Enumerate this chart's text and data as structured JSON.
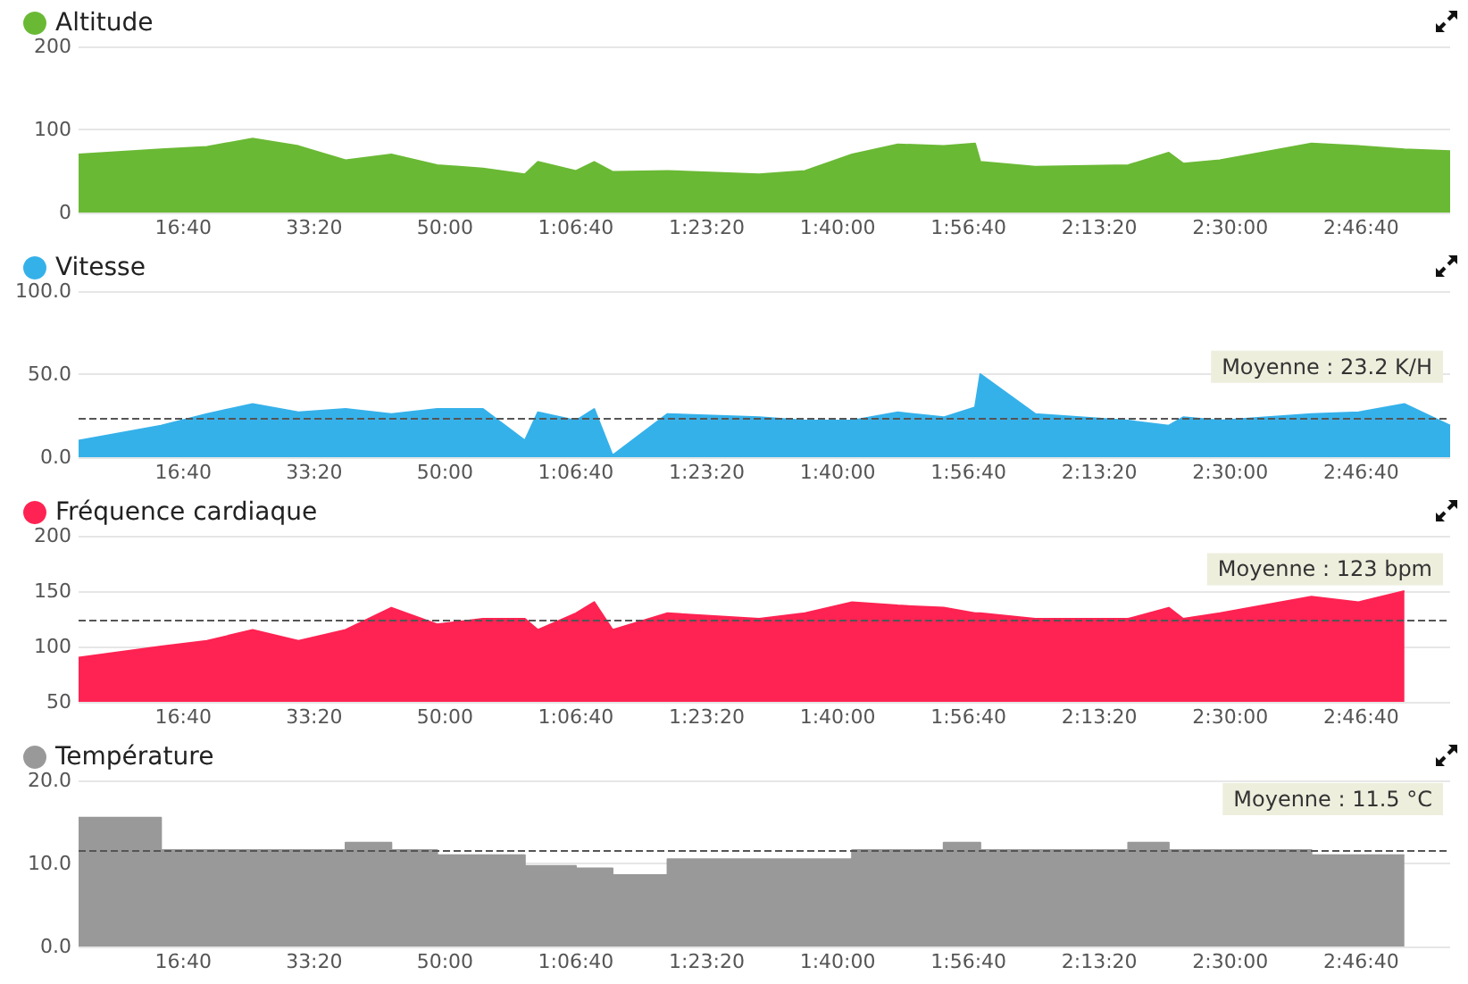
{
  "chart_data": [
    {
      "type": "area",
      "x": [
        200,
        830,
        1180,
        1530,
        1880,
        2240,
        2590,
        2940,
        3290,
        3610,
        3710,
        4000,
        4140,
        4280,
        4700,
        5400,
        5750,
        6110,
        6460,
        6810,
        7050,
        7090,
        7510,
        8220,
        8530,
        8640,
        8920,
        9620,
        9980,
        10330,
        10680
      ],
      "series": [
        {
          "name": "Altitude",
          "color": "#6ab935",
          "values": [
            70,
            76,
            79,
            89,
            80,
            63,
            70,
            57,
            53,
            46,
            61,
            50,
            61,
            49,
            50,
            46,
            50,
            70,
            82,
            80,
            83,
            61,
            55,
            57,
            72,
            59,
            63,
            83,
            80,
            76,
            74
          ]
        }
      ],
      "xlim": [
        200,
        10680
      ],
      "xticks": [
        {
          "value": 1000,
          "label": "16:40"
        },
        {
          "value": 2000,
          "label": "33:20"
        },
        {
          "value": 3000,
          "label": "50:00"
        },
        {
          "value": 4000,
          "label": "1:06:40"
        },
        {
          "value": 5000,
          "label": "1:23:20"
        },
        {
          "value": 6000,
          "label": "1:40:00"
        },
        {
          "value": 7000,
          "label": "1:56:40"
        },
        {
          "value": 8000,
          "label": "2:13:20"
        },
        {
          "value": 9000,
          "label": "2:30:00"
        },
        {
          "value": 10000,
          "label": "2:46:40"
        }
      ],
      "ylim": [
        0,
        200
      ],
      "yticks": [
        0,
        100,
        200
      ],
      "grid": "y",
      "legend": "top left"
    },
    {
      "type": "area",
      "x": [
        200,
        830,
        1180,
        1530,
        1880,
        2240,
        2590,
        2940,
        3290,
        3610,
        3710,
        4000,
        4140,
        4280,
        4700,
        5400,
        5750,
        6110,
        6460,
        6810,
        7050,
        7090,
        7510,
        8220,
        8530,
        8640,
        8920,
        9620,
        9980,
        10330,
        10680
      ],
      "series": [
        {
          "name": "Vitesse",
          "color": "#35b1ea",
          "values": [
            10,
            19,
            26,
            32,
            27,
            29,
            26,
            29,
            29,
            10,
            27,
            22,
            29,
            1,
            26,
            24,
            22,
            22,
            27,
            24,
            30,
            50,
            26,
            22,
            19,
            24,
            22,
            26,
            27,
            32,
            19
          ]
        }
      ],
      "xlim": [
        200,
        10680
      ],
      "xticks": [
        {
          "value": 1000,
          "label": "16:40"
        },
        {
          "value": 2000,
          "label": "33:20"
        },
        {
          "value": 3000,
          "label": "50:00"
        },
        {
          "value": 4000,
          "label": "1:06:40"
        },
        {
          "value": 5000,
          "label": "1:23:20"
        },
        {
          "value": 6000,
          "label": "1:40:00"
        },
        {
          "value": 7000,
          "label": "1:56:40"
        },
        {
          "value": 8000,
          "label": "2:13:20"
        },
        {
          "value": 9000,
          "label": "2:30:00"
        },
        {
          "value": 10000,
          "label": "2:46:40"
        }
      ],
      "ylim": [
        0,
        100
      ],
      "yticks": [
        {
          "value": 0,
          "label": "0.0"
        },
        {
          "value": 50,
          "label": "50.0"
        },
        {
          "value": 100,
          "label": "100.0"
        }
      ],
      "grid": "y",
      "legend": "top left",
      "ref_lines": [
        {
          "axis": "y",
          "value": 23.2,
          "label": "Moyenne : 23.2 K/H",
          "line_style": "dashed"
        }
      ]
    },
    {
      "type": "area",
      "series": [
        {
          "name": "Fréquence cardiaque",
          "color": "#fe2352",
          "x": [
            200,
            830,
            1180,
            1530,
            1880,
            2240,
            2590,
            2940,
            3290,
            3610,
            3710,
            4000,
            4140,
            4280,
            4700,
            5400,
            5750,
            6110,
            6460,
            6810,
            7050,
            7090,
            7510,
            8220,
            8530,
            8640,
            8920,
            9620,
            9980,
            10330
          ],
          "values": [
            90,
            100,
            105,
            115,
            105,
            115,
            135,
            120,
            125,
            125,
            115,
            130,
            140,
            115,
            130,
            125,
            130,
            140,
            137,
            135,
            130,
            130,
            125,
            125,
            135,
            125,
            130,
            145,
            140,
            150
          ]
        }
      ],
      "xlim": [
        200,
        10680
      ],
      "xticks": [
        {
          "value": 1000,
          "label": "16:40"
        },
        {
          "value": 2000,
          "label": "33:20"
        },
        {
          "value": 3000,
          "label": "50:00"
        },
        {
          "value": 4000,
          "label": "1:06:40"
        },
        {
          "value": 5000,
          "label": "1:23:20"
        },
        {
          "value": 6000,
          "label": "1:40:00"
        },
        {
          "value": 7000,
          "label": "1:56:40"
        },
        {
          "value": 8000,
          "label": "2:13:20"
        },
        {
          "value": 9000,
          "label": "2:30:00"
        },
        {
          "value": 10000,
          "label": "2:46:40"
        }
      ],
      "ylim": [
        50,
        200
      ],
      "yticks": [
        50,
        100,
        150,
        200
      ],
      "grid": "y",
      "legend": "top left",
      "ref_lines": [
        {
          "axis": "y",
          "value": 123,
          "label": "Moyenne : 123 bpm",
          "line_style": "dashed"
        }
      ]
    },
    {
      "type": "area",
      "x": [
        200,
        830,
        830,
        2240,
        2240,
        2590,
        2590,
        2940,
        2940,
        3610,
        3610,
        4000,
        4000,
        4280,
        4280,
        4700,
        4700,
        6110,
        6110,
        6810,
        6810,
        7090,
        7090,
        8220,
        8220,
        8530,
        8530,
        9620,
        9620,
        10330
      ],
      "series": [
        {
          "name": "Température",
          "color": "#999999",
          "values": [
            15.5,
            15.5,
            11.6,
            11.6,
            12.5,
            12.5,
            11.6,
            11.6,
            11.0,
            11.0,
            9.7,
            9.7,
            9.4,
            9.4,
            8.6,
            8.6,
            10.5,
            10.5,
            11.6,
            11.6,
            12.5,
            12.5,
            11.6,
            11.6,
            12.5,
            12.5,
            11.6,
            11.6,
            11.0,
            11.0
          ]
        }
      ],
      "xlim": [
        200,
        10680
      ],
      "xticks": [
        {
          "value": 1000,
          "label": "16:40"
        },
        {
          "value": 2000,
          "label": "33:20"
        },
        {
          "value": 3000,
          "label": "50:00"
        },
        {
          "value": 4000,
          "label": "1:06:40"
        },
        {
          "value": 5000,
          "label": "1:23:20"
        },
        {
          "value": 6000,
          "label": "1:40:00"
        },
        {
          "value": 7000,
          "label": "1:56:40"
        },
        {
          "value": 8000,
          "label": "2:13:20"
        },
        {
          "value": 9000,
          "label": "2:30:00"
        },
        {
          "value": 10000,
          "label": "2:46:40"
        }
      ],
      "ylim": [
        0,
        20
      ],
      "yticks": [
        {
          "value": 0,
          "label": "0.0"
        },
        {
          "value": 10,
          "label": "10.0"
        },
        {
          "value": 20,
          "label": "20.0"
        }
      ],
      "grid": "y",
      "legend": "top left",
      "ref_lines": [
        {
          "axis": "y",
          "value": 11.5,
          "label": "Moyenne : 11.5 °C",
          "line_style": "dashed"
        }
      ]
    }
  ]
}
